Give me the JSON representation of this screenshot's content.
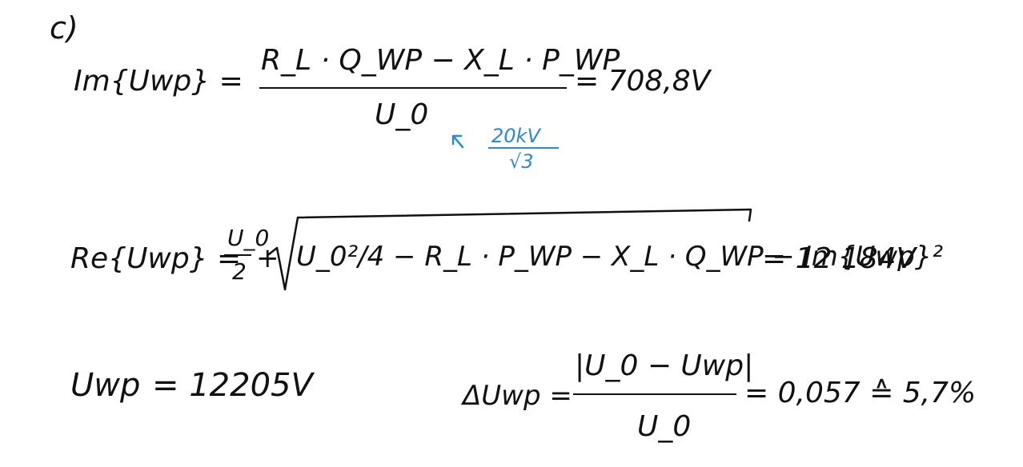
{
  "part_label": "c)",
  "eq1": {
    "lhs": "Im{Uwp} =",
    "numerator": "R_L · Q_WP − X_L · P_WP",
    "denominator": "U_0",
    "result": "= 708,8V",
    "note_numerator": "20kV",
    "note_denominator": "√3"
  },
  "eq2": {
    "lhs": "Re{Uwp} =",
    "half_num": "U_0",
    "half_den": "2",
    "plus": "+",
    "radicand": "U_0²/4 − R_L · P_WP − X_L · Q_WP − Im{Uwp}²",
    "result": "= 12 184V"
  },
  "eq3": {
    "lhs": "Uwp",
    "result": "= 12205V"
  },
  "eq4": {
    "lhs": "ΔUwp =",
    "numerator": "|U_0 − Uwp|",
    "denominator": "U_0",
    "result": "= 0,057 ≙ 5,7%"
  }
}
